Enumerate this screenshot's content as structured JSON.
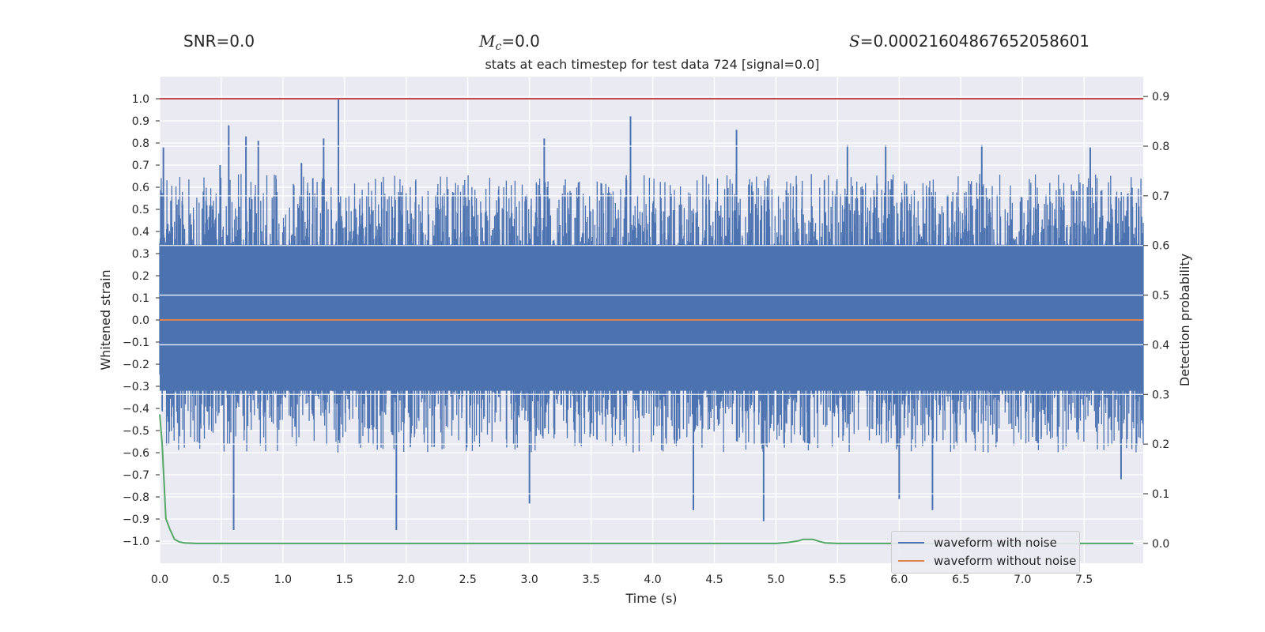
{
  "header": {
    "snr_label": "SNR=0.0",
    "mc_symbol": "M",
    "mc_subscript": "c",
    "mc_value": "=0.0",
    "s_symbol": "S",
    "s_value": "=0.00021604867652058601"
  },
  "chart_data": {
    "type": "line",
    "title": "stats at each timestep for test data 724 [signal=0.0]",
    "xlabel": "Time (s)",
    "ylabel": "Whitened strain",
    "y2label": "Detection probability",
    "xlim": [
      0.0,
      7.98
    ],
    "ylim": [
      -1.1,
      1.1
    ],
    "y2lim": [
      -0.04,
      0.94
    ],
    "xticks": [
      "0.0",
      "0.5",
      "1.0",
      "1.5",
      "2.0",
      "2.5",
      "3.0",
      "3.5",
      "4.0",
      "4.5",
      "5.0",
      "5.5",
      "6.0",
      "6.5",
      "7.0",
      "7.5"
    ],
    "yticks": [
      "1.0",
      "0.9",
      "0.8",
      "0.7",
      "0.6",
      "0.5",
      "0.4",
      "0.3",
      "0.2",
      "0.1",
      "0.0",
      "-0.1",
      "-0.2",
      "-0.3",
      "-0.4",
      "-0.5",
      "-0.6",
      "-0.7",
      "-0.8",
      "-0.9",
      "-1.0"
    ],
    "y2ticks": [
      "0.9",
      "0.8",
      "0.7",
      "0.6",
      "0.5",
      "0.4",
      "0.3",
      "0.2",
      "0.1",
      "0.0"
    ],
    "threshold_y": 1.0,
    "series": [
      {
        "name": "waveform with noise",
        "color": "#4c72b0",
        "axis": "left",
        "description": "dense noise, amplitude roughly -0.9 to 1.0",
        "peaks": [
          {
            "x": 0.03,
            "y": 0.78
          },
          {
            "x": 0.49,
            "y": 0.7
          },
          {
            "x": 0.56,
            "y": 0.88
          },
          {
            "x": 0.7,
            "y": 0.83
          },
          {
            "x": 0.8,
            "y": 0.81
          },
          {
            "x": 1.15,
            "y": 0.71
          },
          {
            "x": 1.33,
            "y": 0.82
          },
          {
            "x": 1.45,
            "y": 1.0
          },
          {
            "x": 3.12,
            "y": 0.82
          },
          {
            "x": 3.82,
            "y": 0.92
          },
          {
            "x": 4.68,
            "y": 0.86
          },
          {
            "x": 5.58,
            "y": 0.79
          },
          {
            "x": 5.89,
            "y": 0.79
          },
          {
            "x": 6.67,
            "y": 0.79
          },
          {
            "x": 7.55,
            "y": 0.78
          }
        ],
        "troughs": [
          {
            "x": 0.6,
            "y": -0.95
          },
          {
            "x": 1.92,
            "y": -0.95
          },
          {
            "x": 3.0,
            "y": -0.83
          },
          {
            "x": 4.33,
            "y": -0.86
          },
          {
            "x": 4.9,
            "y": -0.91
          },
          {
            "x": 6.0,
            "y": -0.81
          },
          {
            "x": 6.27,
            "y": -0.86
          },
          {
            "x": 7.8,
            "y": -0.72
          }
        ]
      },
      {
        "name": "waveform without noise",
        "color": "#dd8452",
        "axis": "left",
        "x": [
          0.0,
          7.98
        ],
        "y": [
          0.0,
          0.0
        ]
      },
      {
        "name": "detection probability",
        "color": "#55a868",
        "axis": "right",
        "x": [
          0.0,
          0.02,
          0.05,
          0.08,
          0.12,
          0.16,
          0.2,
          0.3,
          0.5,
          1.0,
          2.0,
          3.0,
          4.0,
          4.8,
          5.0,
          5.1,
          5.18,
          5.22,
          5.3,
          5.35,
          5.4,
          5.5,
          6.0,
          7.0,
          7.9
        ],
        "y": [
          0.26,
          0.2,
          0.05,
          0.03,
          0.008,
          0.003,
          0.001,
          0.0,
          0.0,
          0.0,
          0.0,
          0.0,
          0.0,
          0.0,
          0.0,
          0.002,
          0.005,
          0.008,
          0.008,
          0.004,
          0.001,
          0.0,
          0.0,
          0.0,
          0.0
        ]
      }
    ],
    "legend": [
      "waveform with noise",
      "waveform without noise"
    ],
    "legend_position": "lower-right",
    "grid": true
  }
}
